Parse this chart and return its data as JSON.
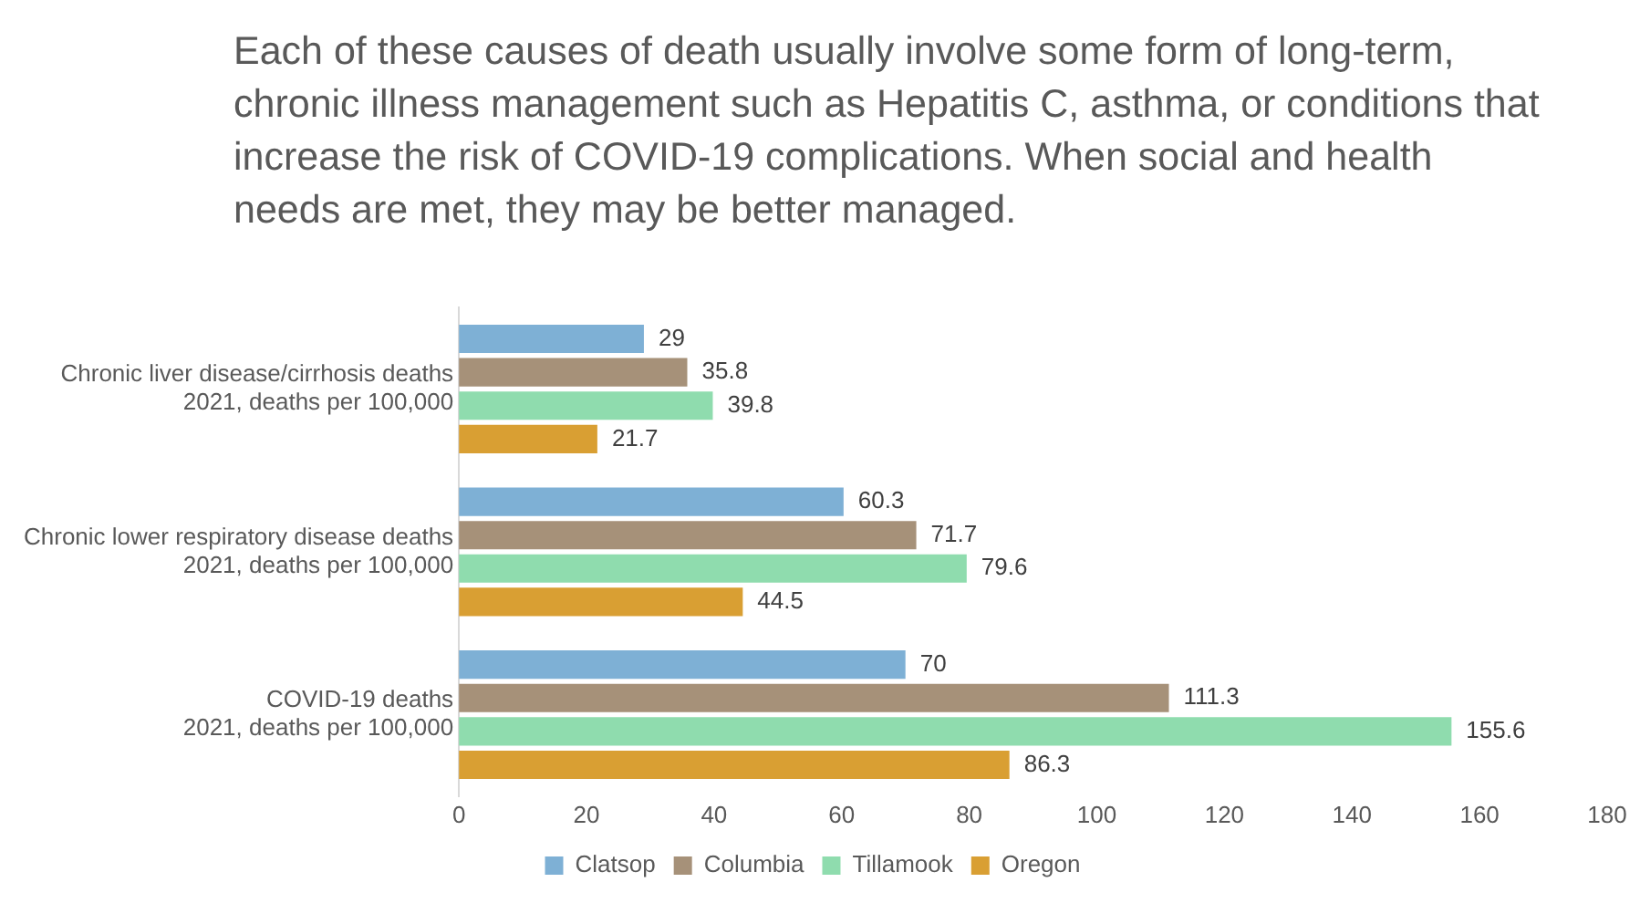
{
  "chart_data": {
    "type": "bar",
    "orientation": "horizontal",
    "title": "Each of these causes of death usually involve some form of long-term, chronic illness management such as Hepatitis C, asthma, or conditions that increase the risk of COVID-19 complications. When social and health needs are met, they may be better managed.",
    "categories": [
      "Chronic liver disease/cirrhosis deaths\n2021, deaths per 100,000",
      "Chronic lower respiratory disease deaths\n2021, deaths per 100,000",
      "COVID-19 deaths\n2021, deaths per 100,000"
    ],
    "series": [
      {
        "name": "Clatsop",
        "color": "#7eb0d5",
        "values": [
          29,
          60.3,
          70
        ]
      },
      {
        "name": "Columbia",
        "color": "#a69179",
        "values": [
          35.8,
          71.7,
          111.3
        ]
      },
      {
        "name": "Tillamook",
        "color": "#8fdcae",
        "values": [
          39.8,
          79.6,
          155.6
        ]
      },
      {
        "name": "Oregon",
        "color": "#d99f33",
        "values": [
          21.7,
          44.5,
          86.3
        ]
      }
    ],
    "xlim": [
      0,
      180
    ],
    "xticks": [
      0,
      20,
      40,
      60,
      80,
      100,
      120,
      140,
      160,
      180
    ],
    "grid": false,
    "legend": "bottom",
    "data_labels": true
  }
}
